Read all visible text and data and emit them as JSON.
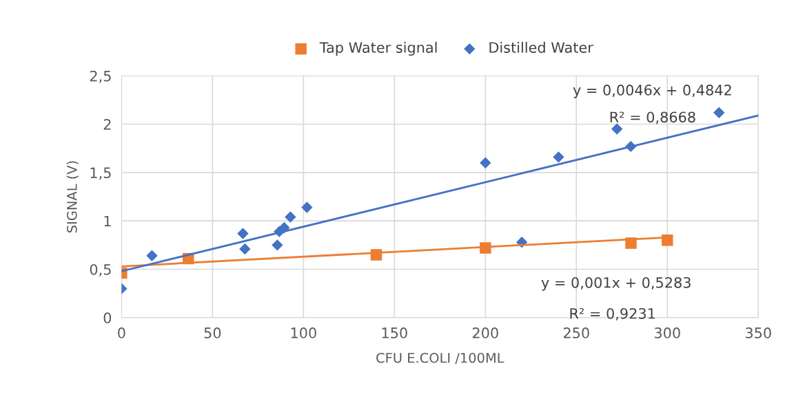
{
  "chart_data": {
    "type": "scatter",
    "xlabel": "CFU E.COLI /100ML",
    "ylabel": "SIGNAL (V)",
    "xlim": [
      0,
      350
    ],
    "xticks": [
      0,
      50,
      100,
      150,
      200,
      250,
      300,
      350
    ],
    "ylim": [
      0,
      2.5
    ],
    "yticks": [
      0,
      {
        "value": 0.5,
        "label": "0,5"
      },
      1,
      {
        "value": 1.5,
        "label": "1,5"
      },
      2,
      {
        "value": 2.5,
        "label": "2,5"
      }
    ],
    "grid": true,
    "legend": "top",
    "series": [
      {
        "name": "Tap Water signal",
        "color": "#ed7d31",
        "marker": "square",
        "x": [
          0,
          36.7,
          140,
          200,
          280,
          300
        ],
        "values": [
          0.46,
          0.61,
          0.65,
          0.72,
          0.77,
          0.8
        ]
      },
      {
        "name": "Distilled Water",
        "color": "#4472c4",
        "marker": "diamond",
        "x": [
          0,
          16.7,
          66.7,
          67.8,
          85.6,
          86.7,
          89.4,
          92.8,
          101.9,
          200,
          220,
          240.2,
          272.3,
          279.9,
          328.4
        ],
        "values": [
          0.3,
          0.64,
          0.87,
          0.71,
          0.75,
          0.89,
          0.93,
          1.04,
          1.14,
          1.6,
          0.78,
          1.66,
          1.95,
          1.77,
          2.12
        ]
      },
      {
        "type": "line",
        "color": "#ed7d31",
        "x": [
          0,
          300
        ],
        "values": [
          0.53,
          0.83
        ]
      },
      {
        "type": "line",
        "color": "#4472c4",
        "x": [
          0,
          350
        ],
        "values": [
          0.48,
          2.09
        ]
      }
    ],
    "annotations": [
      "y = 0,0046x + 0,4842",
      "R² = 0,8668",
      "y = 0,001x + 0,5283",
      "R² = 0,9231"
    ]
  }
}
